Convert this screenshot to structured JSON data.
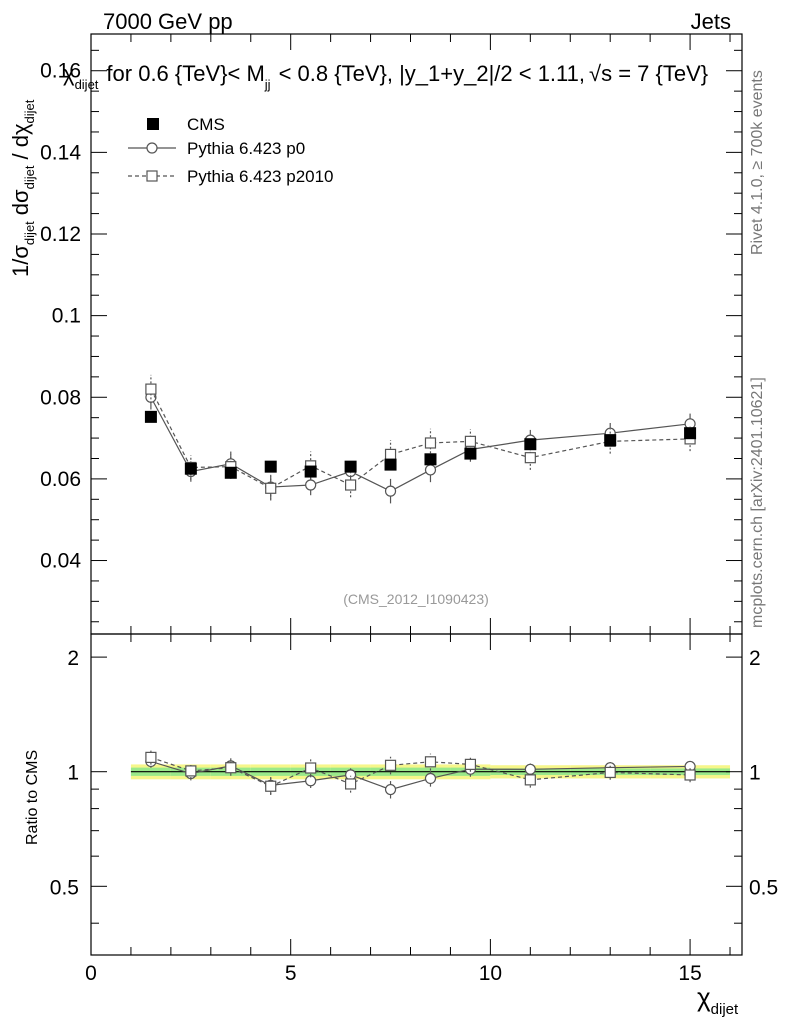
{
  "header": {
    "left": "7000 GeV pp",
    "right": "Jets"
  },
  "side_labels": {
    "rivet": "Rivet 4.1.0, ≥ 700k events",
    "mcplots": "mcplots.cern.ch [arXiv:2401.10621]"
  },
  "chart_data": {
    "type": "scatter",
    "title_parts": {
      "sym": "χ",
      "sub": "dijet",
      "text1": "for 0.6 {TeV}< M",
      "msub": "jj",
      "text2": "< 0.8 {TeV}, |y_1+y_2|/2 < 1.11,",
      "sqrt": "√",
      "text3": "s = 7 {TeV}"
    },
    "ylabel": {
      "part1": "1/σ",
      "part2": "dijet",
      "part3": "dσ",
      "part4": "dijet",
      "part5": "/ dχ",
      "part6": "dijet"
    },
    "xlabel": {
      "sym": "χ",
      "sub": "dijet"
    },
    "ratio_ylabel": "Ratio to CMS",
    "watermark": "(CMS_2012_I1090423)",
    "xlim": [
      0,
      16.3
    ],
    "ylim": [
      0.022,
      0.169
    ],
    "ratio_ylim": [
      0.33,
      2.3
    ],
    "x_ticks": [
      0,
      5,
      10,
      15
    ],
    "x_tick_labels": [
      "0",
      "5",
      "10",
      "15"
    ],
    "y_ticks": [
      0.04,
      0.06,
      0.08,
      0.1,
      0.12,
      0.14,
      0.16
    ],
    "y_tick_labels": [
      "0.04",
      "0.06",
      "0.08",
      "0.1",
      "0.12",
      "0.14",
      "0.16"
    ],
    "ratio_ticks": [
      0.5,
      1,
      2
    ],
    "ratio_tick_labels": [
      "0.5",
      "1",
      "2"
    ],
    "ratio_tick_labels_right": [
      "0.5",
      "1",
      "2"
    ],
    "bin_edges": [
      1,
      2,
      3,
      4,
      5,
      6,
      7,
      8,
      9,
      10,
      12,
      14,
      16
    ],
    "x": [
      1.5,
      2.5,
      3.5,
      4.5,
      5.5,
      6.5,
      7.5,
      8.5,
      9.5,
      11,
      13,
      15
    ],
    "band_outer": [
      0.045,
      0.045,
      0.045,
      0.045,
      0.045,
      0.045,
      0.045,
      0.045,
      0.045,
      0.04,
      0.04,
      0.04
    ],
    "band_inner": [
      0.025,
      0.025,
      0.025,
      0.025,
      0.025,
      0.025,
      0.025,
      0.025,
      0.025,
      0.02,
      0.02,
      0.02
    ],
    "legend": {
      "cms": "CMS",
      "p0": "Pythia 6.423 p0",
      "p2010": "Pythia 6.423 p2010"
    },
    "series": [
      {
        "name": "CMS",
        "style": "marker",
        "values": [
          0.0752,
          0.0625,
          0.0615,
          0.063,
          0.0618,
          0.063,
          0.0635,
          0.0648,
          0.0662,
          0.0685,
          0.0695,
          0.0712
        ],
        "errors": [
          0.001,
          0.001,
          0.001,
          0.001,
          0.001,
          0.001,
          0.001,
          0.001,
          0.001,
          0.001,
          0.001,
          0.001
        ]
      },
      {
        "name": "Pythia 6.423 p0",
        "style": "solid",
        "values": [
          0.08,
          0.0618,
          0.0637,
          0.058,
          0.0585,
          0.0618,
          0.057,
          0.0622,
          0.0672,
          0.0695,
          0.0712,
          0.0735
        ],
        "errors": [
          0.003,
          0.0025,
          0.003,
          0.003,
          0.0025,
          0.0025,
          0.003,
          0.003,
          0.003,
          0.0025,
          0.0025,
          0.0025
        ]
      },
      {
        "name": "Pythia 6.423 p2010",
        "style": "dashed",
        "values": [
          0.082,
          0.0628,
          0.063,
          0.0577,
          0.0632,
          0.0585,
          0.066,
          0.0688,
          0.0692,
          0.0652,
          0.0692,
          0.0698
        ],
        "errors": [
          0.0035,
          0.003,
          0.003,
          0.003,
          0.0035,
          0.003,
          0.0035,
          0.0035,
          0.003,
          0.003,
          0.003,
          0.003
        ]
      }
    ],
    "colors": {
      "band_outer": "#f6f68a",
      "band_inner": "#9ae98a",
      "cms": "#000000",
      "mc": "#555555",
      "watermark": "#999999"
    }
  }
}
